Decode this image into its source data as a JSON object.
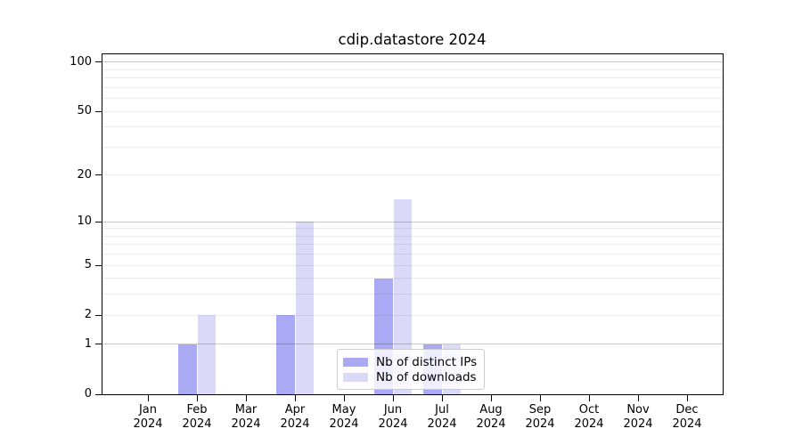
{
  "title": "cdip.datastore 2024",
  "chart_data": {
    "type": "bar",
    "title": "cdip.datastore 2024",
    "categories": [
      "Jan 2024",
      "Feb 2024",
      "Mar 2024",
      "Apr 2024",
      "May 2024",
      "Jun 2024",
      "Jul 2024",
      "Aug 2024",
      "Sep 2024",
      "Oct 2024",
      "Nov 2024",
      "Dec 2024"
    ],
    "series": [
      {
        "name": "Nb of distinct IPs",
        "color": "#a9a9f4",
        "values": [
          0,
          1,
          0,
          2,
          0,
          4,
          1,
          0,
          0,
          0,
          0,
          0
        ]
      },
      {
        "name": "Nb of downloads",
        "color": "#dadaf8",
        "values": [
          0,
          2,
          0,
          10,
          0,
          14,
          1,
          0,
          0,
          0,
          0,
          0
        ]
      }
    ],
    "xlabel": "",
    "ylabel": "",
    "yscale": "log1p",
    "ylim": [
      0,
      113
    ],
    "ytick_values": [
      0,
      1,
      2,
      5,
      10,
      20,
      50,
      100
    ],
    "ytick_labels": [
      "0",
      "1",
      "2",
      "5",
      "10",
      "20",
      "50",
      "100"
    ],
    "major_gridlines": [
      1,
      10,
      100
    ],
    "minor_gridlines": [
      2,
      3,
      4,
      5,
      6,
      7,
      8,
      9,
      20,
      30,
      40,
      50,
      60,
      70,
      80,
      90
    ],
    "grid": true,
    "legend_position": "lower center",
    "colors": {
      "background": "#ffffff",
      "axis": "#000000",
      "text": "#000000",
      "major_grid": "rgba(0,0,0,0.21)",
      "minor_grid": "rgba(0,0,0,0.07)",
      "legend_border": "#cccccc",
      "legend_background": "rgba(255,255,255,0.8)"
    }
  }
}
